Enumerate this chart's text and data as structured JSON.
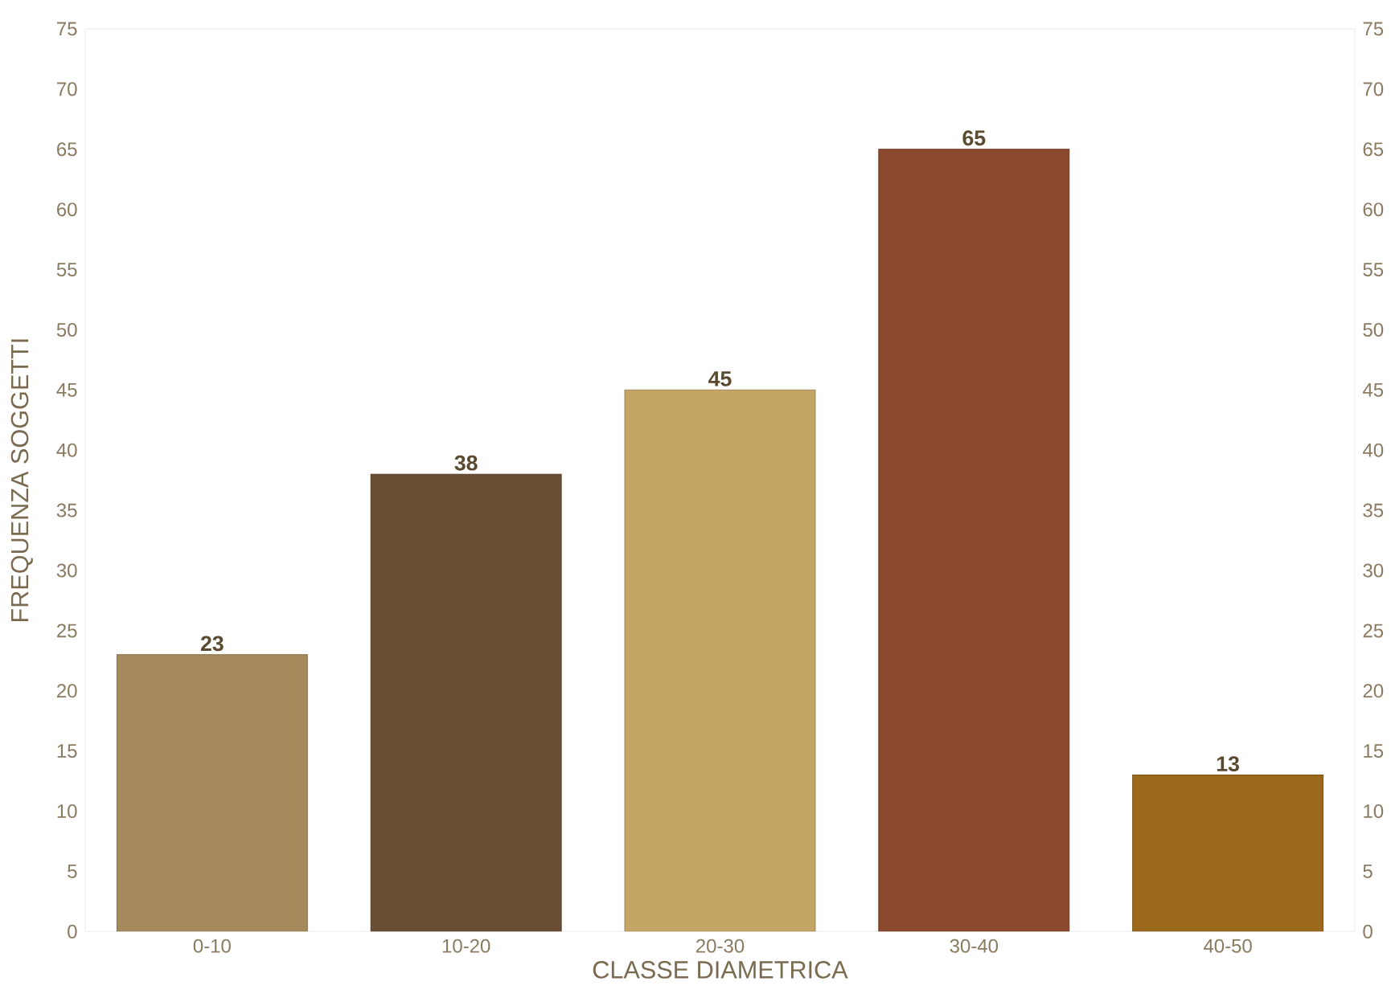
{
  "chart_data": {
    "type": "bar",
    "xlabel": "CLASSE DIAMETRICA",
    "ylabel": "FREQUENZA SOGGETTI",
    "categories": [
      "0-10",
      "10-20",
      "20-30",
      "30-40",
      "40-50"
    ],
    "values": [
      23,
      38,
      45,
      65,
      13
    ],
    "colors": [
      "#a58a5c",
      "#6a4e33",
      "#c4a564",
      "#8a482c",
      "#9c6a1c"
    ],
    "ylim": [
      0,
      75
    ],
    "yticks": [
      0,
      5,
      10,
      15,
      20,
      25,
      30,
      35,
      40,
      45,
      50,
      55,
      60,
      65,
      70,
      75
    ],
    "y2lim": [
      0,
      75
    ],
    "y2ticks": [
      0,
      5,
      10,
      15,
      20,
      25,
      30,
      35,
      40,
      45,
      50,
      55,
      60,
      65,
      70,
      75
    ],
    "data_labels": true,
    "grid": false
  }
}
